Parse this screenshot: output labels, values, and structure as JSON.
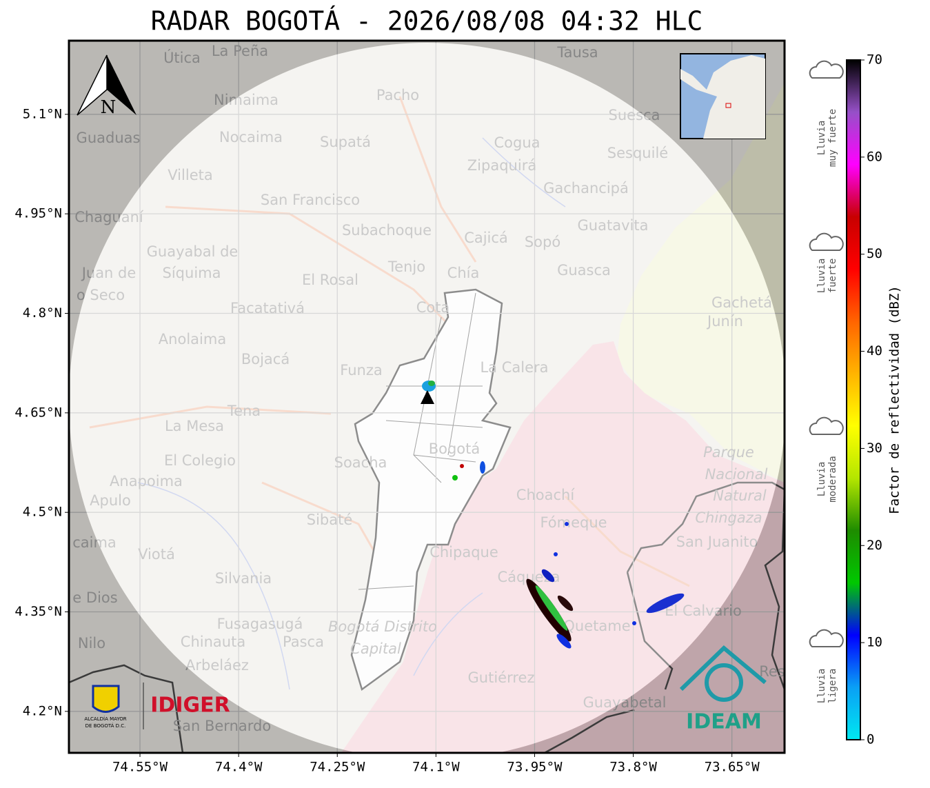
{
  "title": "RADAR BOGOTÁ - 2026/08/08 04:32 HLC",
  "map": {
    "xlim": [
      -74.658,
      -73.57
    ],
    "ylim": [
      4.1375,
      5.211
    ],
    "xticks": [
      {
        "value": -74.55,
        "label": "74.55°W"
      },
      {
        "value": -74.4,
        "label": "74.4°W"
      },
      {
        "value": -74.25,
        "label": "74.25°W"
      },
      {
        "value": -74.1,
        "label": "74.1°W"
      },
      {
        "value": -73.95,
        "label": "73.95°W"
      },
      {
        "value": -73.8,
        "label": "73.8°W"
      },
      {
        "value": -73.65,
        "label": "73.65°W"
      }
    ],
    "yticks": [
      {
        "value": 5.1,
        "label": "5.1°N"
      },
      {
        "value": 4.95,
        "label": "4.95°N"
      },
      {
        "value": 4.8,
        "label": "4.8°N"
      },
      {
        "value": 4.65,
        "label": "4.65°N"
      },
      {
        "value": 4.5,
        "label": "4.5°N"
      },
      {
        "value": 4.35,
        "label": "4.35°N"
      },
      {
        "value": 4.2,
        "label": "4.2°N"
      }
    ],
    "grid": true,
    "north_label": "N",
    "places": [
      "La Peña",
      "Útica",
      "Tausa",
      "Pacho",
      "Nimaima",
      "Guaduas",
      "Nocaima",
      "Supatá",
      "Cogua",
      "Suesca",
      "Sesquilé",
      "Villeta",
      "Zipaquirá",
      "Gachancipá",
      "San Francisco",
      "Chaguaní",
      "Guatavita",
      "Subachoque",
      "Cajicá",
      "Sopó",
      "Guayabal de",
      "Síquima",
      "Tenjo",
      "Chía",
      "Guasca",
      "Juan de",
      "o Seco",
      "El Rosal",
      "Cota",
      "Gachetá",
      "Junín",
      "Facatativá",
      "Anolaima",
      "Bojacá",
      "Funza",
      "La Calera",
      "Tena",
      "La Mesa",
      "Bogotá",
      "Parque",
      "Nacional",
      "Natural",
      "Chingaza",
      "El Colegio",
      "Soacha",
      "Anapoima",
      "Apulo",
      "Choachí",
      "Sibaté",
      "Fómeque",
      "San Juanito",
      "caima",
      "Viotá",
      "Chipaque",
      "Cáqueza",
      "Silvania",
      "e Dios",
      "El Calvario",
      "Fusagasugá",
      "Quetame",
      "Bogotá Distrito",
      "Capital",
      "Nilo",
      "Chinauta",
      "Pasca",
      "Arbeláez",
      "Gutiérrez",
      "Guayabetal",
      "San Bernardo",
      "Res"
    ],
    "logos": {
      "alcaldia": [
        "ALCALDÍA MAYOR",
        "DE BOGOTÁ D.C."
      ],
      "idiger": "IDIGER",
      "ideam": "IDEAM"
    }
  },
  "colorbar": {
    "range": [
      0,
      70
    ],
    "ticks": [
      0,
      10,
      20,
      30,
      40,
      50,
      60,
      70
    ],
    "label": "Factor de reflectividad (dBZ)",
    "colors": [
      "#00e8f0",
      "#0aa0f5",
      "#0000ff",
      "#00c800",
      "#1e8c00",
      "#b4e600",
      "#ffff00",
      "#ffb400",
      "#ff6400",
      "#ff0000",
      "#c80000",
      "#ff00ff",
      "#9650c8",
      "#000000"
    ]
  },
  "rain_legend": [
    [
      "Lluvia",
      "muy fuerte"
    ],
    [
      "Lluvia",
      "fuerte"
    ],
    [
      "Lluvia",
      "moderada"
    ],
    [
      "Lluvia",
      "ligera"
    ]
  ]
}
